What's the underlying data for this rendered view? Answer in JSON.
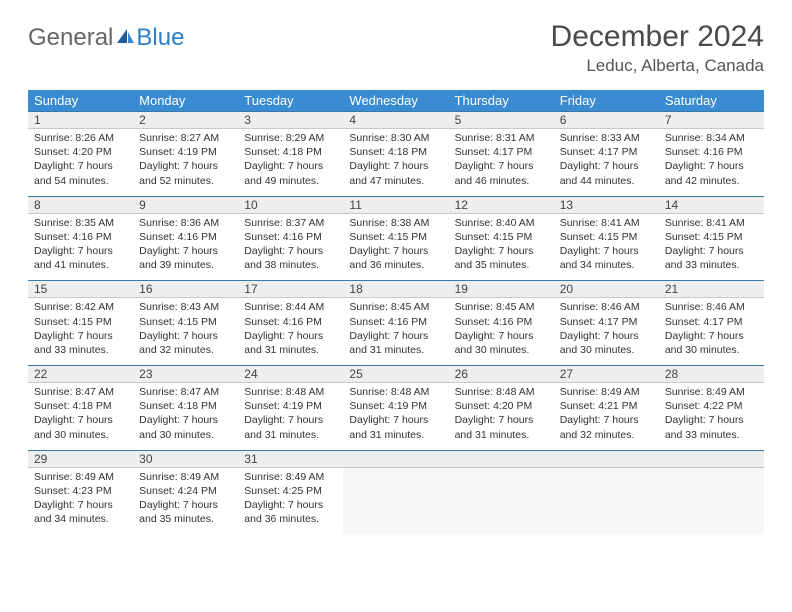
{
  "brand": {
    "word1": "General",
    "word2": "Blue"
  },
  "title": "December 2024",
  "location": "Leduc, Alberta, Canada",
  "colors": {
    "header_bg": "#3a8bd1",
    "header_text": "#ffffff",
    "daynum_bg": "#eeeeee",
    "daynum_border_top": "#3a7aa8",
    "body_text": "#333333",
    "title_text": "#4a4a4a",
    "brand_blue": "#2f7fc3",
    "brand_gray": "#666666"
  },
  "typography": {
    "title_fontsize": 30,
    "location_fontsize": 17,
    "dayheader_fontsize": 13,
    "daynum_fontsize": 12,
    "cell_fontsize": 10.5
  },
  "day_headers": [
    "Sunday",
    "Monday",
    "Tuesday",
    "Wednesday",
    "Thursday",
    "Friday",
    "Saturday"
  ],
  "weeks": [
    [
      {
        "num": "1",
        "sunrise": "Sunrise: 8:26 AM",
        "sunset": "Sunset: 4:20 PM",
        "day1": "Daylight: 7 hours",
        "day2": "and 54 minutes."
      },
      {
        "num": "2",
        "sunrise": "Sunrise: 8:27 AM",
        "sunset": "Sunset: 4:19 PM",
        "day1": "Daylight: 7 hours",
        "day2": "and 52 minutes."
      },
      {
        "num": "3",
        "sunrise": "Sunrise: 8:29 AM",
        "sunset": "Sunset: 4:18 PM",
        "day1": "Daylight: 7 hours",
        "day2": "and 49 minutes."
      },
      {
        "num": "4",
        "sunrise": "Sunrise: 8:30 AM",
        "sunset": "Sunset: 4:18 PM",
        "day1": "Daylight: 7 hours",
        "day2": "and 47 minutes."
      },
      {
        "num": "5",
        "sunrise": "Sunrise: 8:31 AM",
        "sunset": "Sunset: 4:17 PM",
        "day1": "Daylight: 7 hours",
        "day2": "and 46 minutes."
      },
      {
        "num": "6",
        "sunrise": "Sunrise: 8:33 AM",
        "sunset": "Sunset: 4:17 PM",
        "day1": "Daylight: 7 hours",
        "day2": "and 44 minutes."
      },
      {
        "num": "7",
        "sunrise": "Sunrise: 8:34 AM",
        "sunset": "Sunset: 4:16 PM",
        "day1": "Daylight: 7 hours",
        "day2": "and 42 minutes."
      }
    ],
    [
      {
        "num": "8",
        "sunrise": "Sunrise: 8:35 AM",
        "sunset": "Sunset: 4:16 PM",
        "day1": "Daylight: 7 hours",
        "day2": "and 41 minutes."
      },
      {
        "num": "9",
        "sunrise": "Sunrise: 8:36 AM",
        "sunset": "Sunset: 4:16 PM",
        "day1": "Daylight: 7 hours",
        "day2": "and 39 minutes."
      },
      {
        "num": "10",
        "sunrise": "Sunrise: 8:37 AM",
        "sunset": "Sunset: 4:16 PM",
        "day1": "Daylight: 7 hours",
        "day2": "and 38 minutes."
      },
      {
        "num": "11",
        "sunrise": "Sunrise: 8:38 AM",
        "sunset": "Sunset: 4:15 PM",
        "day1": "Daylight: 7 hours",
        "day2": "and 36 minutes."
      },
      {
        "num": "12",
        "sunrise": "Sunrise: 8:40 AM",
        "sunset": "Sunset: 4:15 PM",
        "day1": "Daylight: 7 hours",
        "day2": "and 35 minutes."
      },
      {
        "num": "13",
        "sunrise": "Sunrise: 8:41 AM",
        "sunset": "Sunset: 4:15 PM",
        "day1": "Daylight: 7 hours",
        "day2": "and 34 minutes."
      },
      {
        "num": "14",
        "sunrise": "Sunrise: 8:41 AM",
        "sunset": "Sunset: 4:15 PM",
        "day1": "Daylight: 7 hours",
        "day2": "and 33 minutes."
      }
    ],
    [
      {
        "num": "15",
        "sunrise": "Sunrise: 8:42 AM",
        "sunset": "Sunset: 4:15 PM",
        "day1": "Daylight: 7 hours",
        "day2": "and 33 minutes."
      },
      {
        "num": "16",
        "sunrise": "Sunrise: 8:43 AM",
        "sunset": "Sunset: 4:15 PM",
        "day1": "Daylight: 7 hours",
        "day2": "and 32 minutes."
      },
      {
        "num": "17",
        "sunrise": "Sunrise: 8:44 AM",
        "sunset": "Sunset: 4:16 PM",
        "day1": "Daylight: 7 hours",
        "day2": "and 31 minutes."
      },
      {
        "num": "18",
        "sunrise": "Sunrise: 8:45 AM",
        "sunset": "Sunset: 4:16 PM",
        "day1": "Daylight: 7 hours",
        "day2": "and 31 minutes."
      },
      {
        "num": "19",
        "sunrise": "Sunrise: 8:45 AM",
        "sunset": "Sunset: 4:16 PM",
        "day1": "Daylight: 7 hours",
        "day2": "and 30 minutes."
      },
      {
        "num": "20",
        "sunrise": "Sunrise: 8:46 AM",
        "sunset": "Sunset: 4:17 PM",
        "day1": "Daylight: 7 hours",
        "day2": "and 30 minutes."
      },
      {
        "num": "21",
        "sunrise": "Sunrise: 8:46 AM",
        "sunset": "Sunset: 4:17 PM",
        "day1": "Daylight: 7 hours",
        "day2": "and 30 minutes."
      }
    ],
    [
      {
        "num": "22",
        "sunrise": "Sunrise: 8:47 AM",
        "sunset": "Sunset: 4:18 PM",
        "day1": "Daylight: 7 hours",
        "day2": "and 30 minutes."
      },
      {
        "num": "23",
        "sunrise": "Sunrise: 8:47 AM",
        "sunset": "Sunset: 4:18 PM",
        "day1": "Daylight: 7 hours",
        "day2": "and 30 minutes."
      },
      {
        "num": "24",
        "sunrise": "Sunrise: 8:48 AM",
        "sunset": "Sunset: 4:19 PM",
        "day1": "Daylight: 7 hours",
        "day2": "and 31 minutes."
      },
      {
        "num": "25",
        "sunrise": "Sunrise: 8:48 AM",
        "sunset": "Sunset: 4:19 PM",
        "day1": "Daylight: 7 hours",
        "day2": "and 31 minutes."
      },
      {
        "num": "26",
        "sunrise": "Sunrise: 8:48 AM",
        "sunset": "Sunset: 4:20 PM",
        "day1": "Daylight: 7 hours",
        "day2": "and 31 minutes."
      },
      {
        "num": "27",
        "sunrise": "Sunrise: 8:49 AM",
        "sunset": "Sunset: 4:21 PM",
        "day1": "Daylight: 7 hours",
        "day2": "and 32 minutes."
      },
      {
        "num": "28",
        "sunrise": "Sunrise: 8:49 AM",
        "sunset": "Sunset: 4:22 PM",
        "day1": "Daylight: 7 hours",
        "day2": "and 33 minutes."
      }
    ],
    [
      {
        "num": "29",
        "sunrise": "Sunrise: 8:49 AM",
        "sunset": "Sunset: 4:23 PM",
        "day1": "Daylight: 7 hours",
        "day2": "and 34 minutes."
      },
      {
        "num": "30",
        "sunrise": "Sunrise: 8:49 AM",
        "sunset": "Sunset: 4:24 PM",
        "day1": "Daylight: 7 hours",
        "day2": "and 35 minutes."
      },
      {
        "num": "31",
        "sunrise": "Sunrise: 8:49 AM",
        "sunset": "Sunset: 4:25 PM",
        "day1": "Daylight: 7 hours",
        "day2": "and 36 minutes."
      },
      null,
      null,
      null,
      null
    ]
  ]
}
